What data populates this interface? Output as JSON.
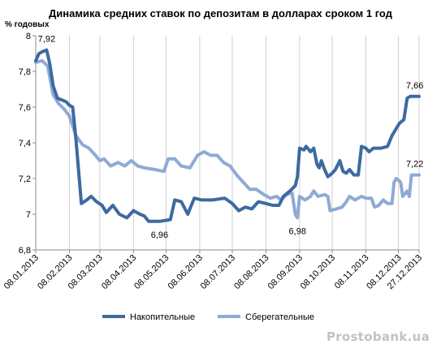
{
  "chart_data": {
    "type": "line",
    "title": "Динамика средних ставок по депозитам в долларах сроком 1 год",
    "ylabel": "% годовых",
    "xlabel": "",
    "ylim": [
      6.8,
      8
    ],
    "yticks": [
      "6,8",
      "7",
      "7,2",
      "7,4",
      "7,6",
      "7,8",
      "8"
    ],
    "xlim": [
      "2013-01-08",
      "2013-12-27"
    ],
    "xticks": [
      "08.01.2013",
      "08.02.2013",
      "08.03.2013",
      "08.04.2013",
      "08.05.2013",
      "08.06.2013",
      "08.07.2013",
      "08.08.2013",
      "08.09.2013",
      "08.10.2013",
      "08.11.2013",
      "08.12.2013",
      "27.12.2013"
    ],
    "grid": {
      "vertical": true,
      "horizontal": false
    },
    "legend_position": "bottom",
    "series": [
      {
        "name": "Накопительные",
        "color": "#3d6aa0",
        "points": [
          [
            "2013-01-08",
            7.86
          ],
          [
            "2013-01-11",
            7.9
          ],
          [
            "2013-01-14",
            7.91
          ],
          [
            "2013-01-18",
            7.92
          ],
          [
            "2013-01-21",
            7.84
          ],
          [
            "2013-01-24",
            7.72
          ],
          [
            "2013-01-28",
            7.65
          ],
          [
            "2013-02-01",
            7.64
          ],
          [
            "2013-02-05",
            7.63
          ],
          [
            "2013-02-08",
            7.61
          ],
          [
            "2013-02-11",
            7.6
          ],
          [
            "2013-02-14",
            7.42
          ],
          [
            "2013-02-19",
            7.06
          ],
          [
            "2013-02-24",
            7.08
          ],
          [
            "2013-02-28",
            7.1
          ],
          [
            "2013-03-05",
            7.07
          ],
          [
            "2013-03-10",
            7.05
          ],
          [
            "2013-03-14",
            7.01
          ],
          [
            "2013-03-20",
            7.05
          ],
          [
            "2013-03-26",
            7.0
          ],
          [
            "2013-04-02",
            6.98
          ],
          [
            "2013-04-08",
            7.02
          ],
          [
            "2013-04-14",
            7.0
          ],
          [
            "2013-04-18",
            6.99
          ],
          [
            "2013-04-22",
            6.96
          ],
          [
            "2013-05-02",
            6.96
          ],
          [
            "2013-05-12",
            6.97
          ],
          [
            "2013-05-16",
            7.08
          ],
          [
            "2013-05-22",
            7.07
          ],
          [
            "2013-05-28",
            7.0
          ],
          [
            "2013-06-03",
            7.09
          ],
          [
            "2013-06-10",
            7.08
          ],
          [
            "2013-06-20",
            7.08
          ],
          [
            "2013-07-01",
            7.09
          ],
          [
            "2013-07-08",
            7.06
          ],
          [
            "2013-07-14",
            7.02
          ],
          [
            "2013-07-20",
            7.04
          ],
          [
            "2013-07-26",
            7.03
          ],
          [
            "2013-08-01",
            7.07
          ],
          [
            "2013-08-08",
            7.06
          ],
          [
            "2013-08-14",
            7.05
          ],
          [
            "2013-08-20",
            7.05
          ],
          [
            "2013-08-24",
            7.1
          ],
          [
            "2013-08-30",
            7.13
          ],
          [
            "2013-09-04",
            7.16
          ],
          [
            "2013-09-06",
            7.21
          ],
          [
            "2013-09-08",
            7.37
          ],
          [
            "2013-09-12",
            7.36
          ],
          [
            "2013-09-14",
            7.38
          ],
          [
            "2013-09-18",
            7.35
          ],
          [
            "2013-09-21",
            7.37
          ],
          [
            "2013-09-24",
            7.28
          ],
          [
            "2013-09-26",
            7.26
          ],
          [
            "2013-09-28",
            7.3
          ],
          [
            "2013-10-01",
            7.25
          ],
          [
            "2013-10-04",
            7.21
          ],
          [
            "2013-10-08",
            7.23
          ],
          [
            "2013-10-11",
            7.25
          ],
          [
            "2013-10-15",
            7.3
          ],
          [
            "2013-10-18",
            7.24
          ],
          [
            "2013-10-21",
            7.23
          ],
          [
            "2013-10-24",
            7.25
          ],
          [
            "2013-10-28",
            7.22
          ],
          [
            "2013-11-01",
            7.22
          ],
          [
            "2013-11-04",
            7.38
          ],
          [
            "2013-11-08",
            7.37
          ],
          [
            "2013-11-11",
            7.35
          ],
          [
            "2013-11-15",
            7.37
          ],
          [
            "2013-11-22",
            7.37
          ],
          [
            "2013-11-28",
            7.38
          ],
          [
            "2013-12-02",
            7.44
          ],
          [
            "2013-12-06",
            7.48
          ],
          [
            "2013-12-09",
            7.51
          ],
          [
            "2013-12-13",
            7.53
          ],
          [
            "2013-12-16",
            7.65
          ],
          [
            "2013-12-19",
            7.66
          ],
          [
            "2013-12-27",
            7.66
          ]
        ]
      },
      {
        "name": "Сберегательные",
        "color": "#8eaad5",
        "points": [
          [
            "2013-01-08",
            7.85
          ],
          [
            "2013-01-14",
            7.86
          ],
          [
            "2013-01-19",
            7.83
          ],
          [
            "2013-01-24",
            7.67
          ],
          [
            "2013-01-29",
            7.62
          ],
          [
            "2013-02-03",
            7.59
          ],
          [
            "2013-02-08",
            7.55
          ],
          [
            "2013-02-14",
            7.44
          ],
          [
            "2013-02-20",
            7.39
          ],
          [
            "2013-02-26",
            7.37
          ],
          [
            "2013-03-04",
            7.33
          ],
          [
            "2013-03-08",
            7.3
          ],
          [
            "2013-03-12",
            7.31
          ],
          [
            "2013-03-18",
            7.27
          ],
          [
            "2013-03-25",
            7.29
          ],
          [
            "2013-03-31",
            7.27
          ],
          [
            "2013-04-06",
            7.3
          ],
          [
            "2013-04-12",
            7.27
          ],
          [
            "2013-04-18",
            7.26
          ],
          [
            "2013-04-28",
            7.25
          ],
          [
            "2013-05-06",
            7.24
          ],
          [
            "2013-05-10",
            7.31
          ],
          [
            "2013-05-16",
            7.31
          ],
          [
            "2013-05-22",
            7.27
          ],
          [
            "2013-05-30",
            7.26
          ],
          [
            "2013-06-06",
            7.33
          ],
          [
            "2013-06-12",
            7.35
          ],
          [
            "2013-06-18",
            7.33
          ],
          [
            "2013-06-24",
            7.33
          ],
          [
            "2013-06-30",
            7.29
          ],
          [
            "2013-07-06",
            7.27
          ],
          [
            "2013-07-12",
            7.22
          ],
          [
            "2013-07-18",
            7.18
          ],
          [
            "2013-07-24",
            7.14
          ],
          [
            "2013-07-30",
            7.14
          ],
          [
            "2013-08-06",
            7.11
          ],
          [
            "2013-08-12",
            7.09
          ],
          [
            "2013-08-18",
            7.1
          ],
          [
            "2013-08-22",
            7.08
          ],
          [
            "2013-08-27",
            7.11
          ],
          [
            "2013-09-01",
            7.12
          ],
          [
            "2013-09-04",
            7.0
          ],
          [
            "2013-09-06",
            6.98
          ],
          [
            "2013-09-08",
            7.1
          ],
          [
            "2013-09-13",
            7.08
          ],
          [
            "2013-09-18",
            7.1
          ],
          [
            "2013-09-21",
            7.13
          ],
          [
            "2013-09-25",
            7.1
          ],
          [
            "2013-10-01",
            7.11
          ],
          [
            "2013-10-04",
            7.1
          ],
          [
            "2013-10-06",
            7.02
          ],
          [
            "2013-10-12",
            7.03
          ],
          [
            "2013-10-17",
            7.04
          ],
          [
            "2013-10-21",
            7.07
          ],
          [
            "2013-10-24",
            7.1
          ],
          [
            "2013-10-29",
            7.08
          ],
          [
            "2013-11-04",
            7.1
          ],
          [
            "2013-11-08",
            7.09
          ],
          [
            "2013-11-13",
            7.09
          ],
          [
            "2013-11-16",
            7.04
          ],
          [
            "2013-11-20",
            7.05
          ],
          [
            "2013-11-24",
            7.08
          ],
          [
            "2013-11-28",
            7.06
          ],
          [
            "2013-12-02",
            7.06
          ],
          [
            "2013-12-04",
            7.18
          ],
          [
            "2013-12-06",
            7.2
          ],
          [
            "2013-12-10",
            7.18
          ],
          [
            "2013-12-12",
            7.1
          ],
          [
            "2013-12-16",
            7.13
          ],
          [
            "2013-12-18",
            7.1
          ],
          [
            "2013-12-20",
            7.22
          ],
          [
            "2013-12-27",
            7.22
          ]
        ]
      }
    ],
    "data_labels": [
      {
        "text": "7,92",
        "series": 0,
        "date": "2013-01-18",
        "value": 7.92,
        "pos": "above"
      },
      {
        "text": "6,96",
        "series": 0,
        "date": "2013-05-02",
        "value": 6.96,
        "pos": "below"
      },
      {
        "text": "6,98",
        "series": 1,
        "date": "2013-09-06",
        "value": 6.98,
        "pos": "below"
      },
      {
        "text": "7,66",
        "series": 0,
        "date": "2013-12-23",
        "value": 7.66,
        "pos": "above"
      },
      {
        "text": "7,22",
        "series": 1,
        "date": "2013-12-23",
        "value": 7.22,
        "pos": "above"
      }
    ]
  },
  "watermark": "Prostobank.ua"
}
